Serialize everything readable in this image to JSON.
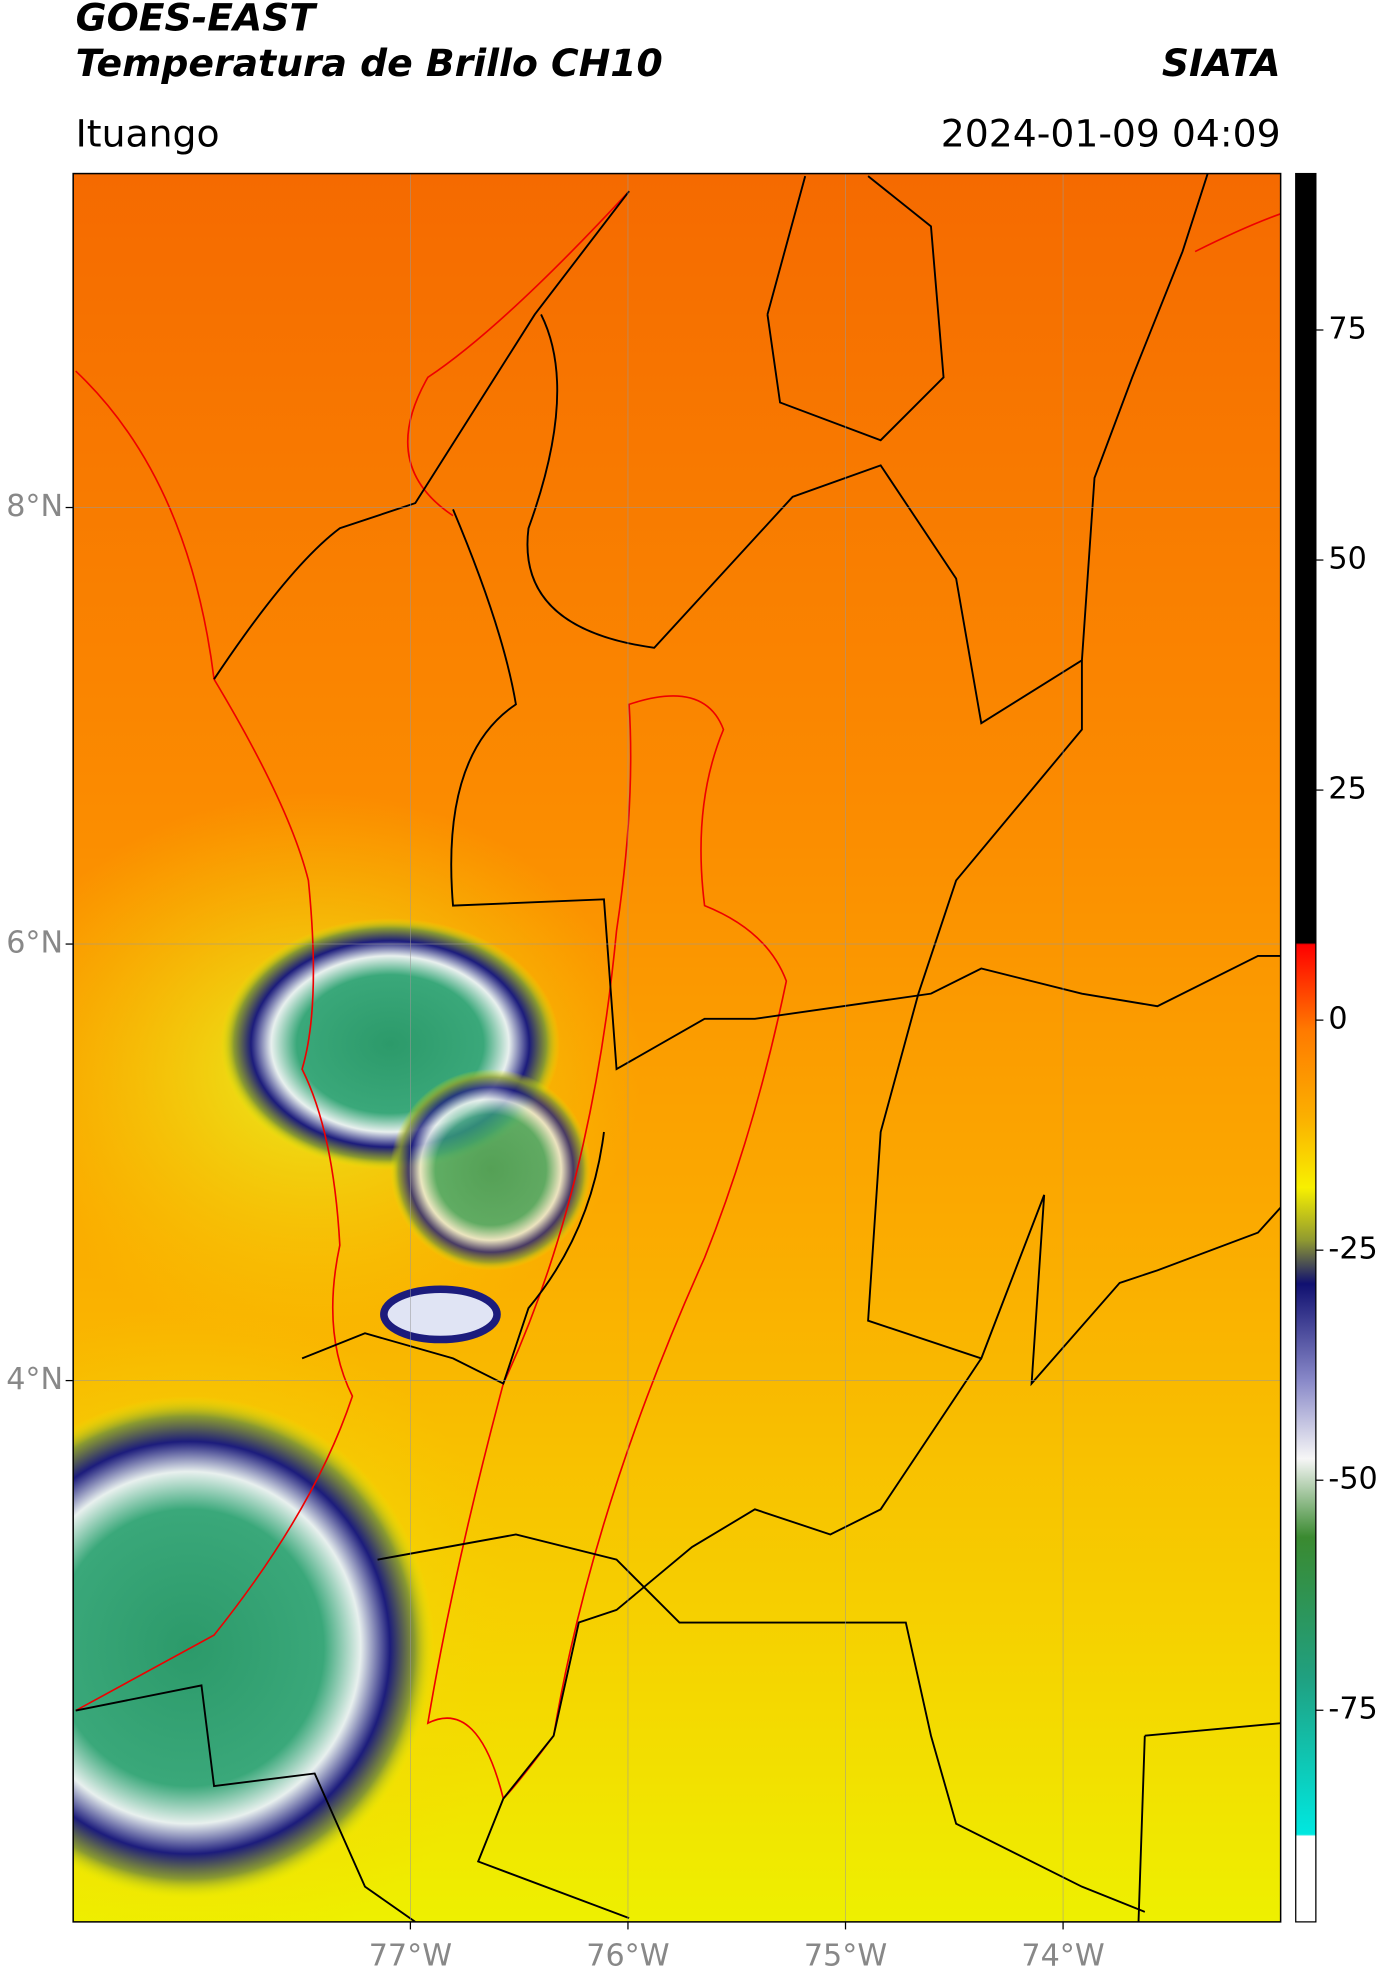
{
  "header": {
    "title": "GOES-EAST",
    "subtitle": "Temperatura de Brillo CH10",
    "source": "SIATA",
    "location": "Ituango",
    "datetime": "2024-01-09 04:09"
  },
  "map": {
    "lon_range": [
      -78.55,
      -73.0
    ],
    "lat_range": [
      1.52,
      9.53
    ],
    "lat_ticks": [
      {
        "value": 8,
        "label": "8°N"
      },
      {
        "value": 6,
        "label": "6°N"
      },
      {
        "value": 4,
        "label": "4°N"
      }
    ],
    "lon_ticks": [
      {
        "value": -77,
        "label": "77°W"
      },
      {
        "value": -76,
        "label": "76°W"
      },
      {
        "value": -75,
        "label": "75°W"
      },
      {
        "value": -74,
        "label": "74°W"
      }
    ],
    "grid": true
  },
  "colorbar": {
    "range": [
      -98,
      92
    ],
    "ticks": [
      75,
      50,
      25,
      0,
      -25,
      -50,
      -75
    ]
  }
}
